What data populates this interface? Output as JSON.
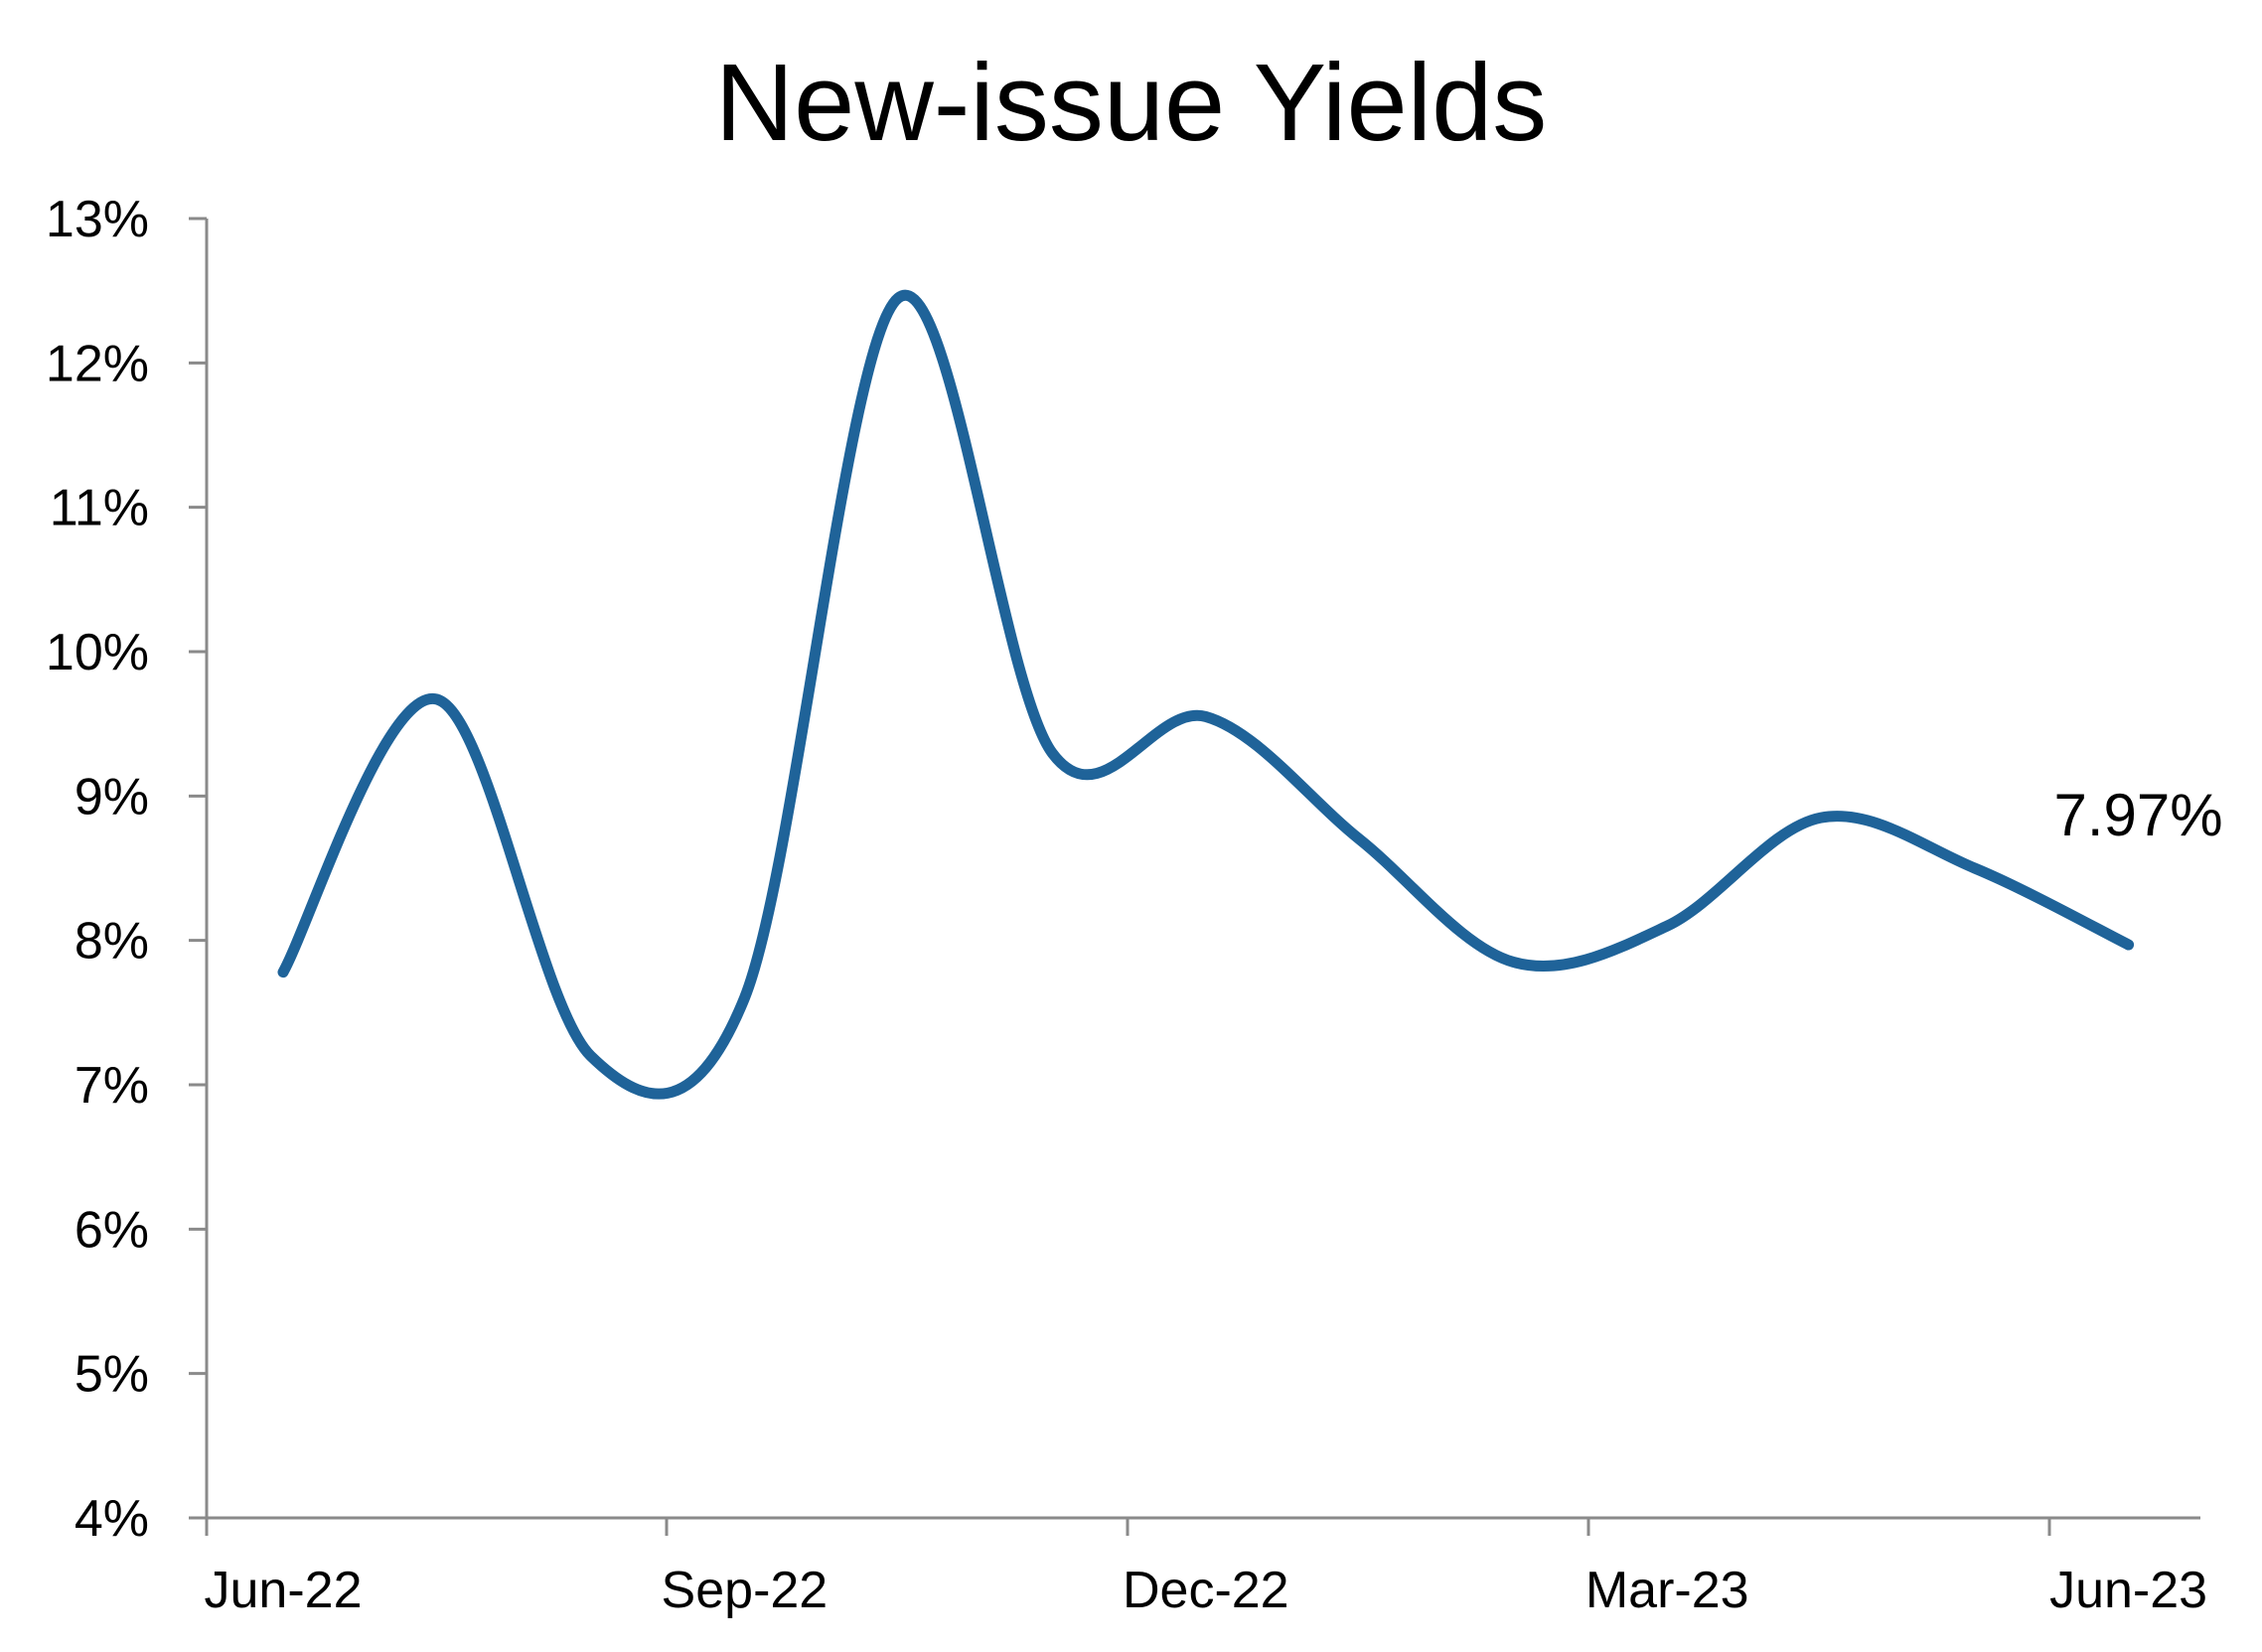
{
  "chart_data": {
    "type": "line",
    "title": "New-issue Yields",
    "xlabel": "",
    "ylabel": "",
    "x_tick_labels": [
      "Jun-22",
      "Sep-22",
      "Dec-22",
      "Mar-23",
      "Jun-23"
    ],
    "y_tick_labels": [
      "4%",
      "5%",
      "6%",
      "7%",
      "8%",
      "9%",
      "10%",
      "11%",
      "12%",
      "13%"
    ],
    "ylim": [
      4,
      13
    ],
    "y_unit": "%",
    "grid": false,
    "legend": "none",
    "series": [
      {
        "color": "#1f6399",
        "x": [
          "Jun-22",
          "Jul-22",
          "Aug-22",
          "Sep-22",
          "Oct-22",
          "Nov-22",
          "Dec-22",
          "Jan-23",
          "Feb-23",
          "Mar-23",
          "Apr-23",
          "May-23",
          "Jun-23"
        ],
        "values": [
          7.78,
          9.67,
          7.2,
          7.6,
          12.45,
          9.3,
          9.55,
          8.7,
          7.85,
          8.1,
          8.85,
          8.5,
          7.97
        ]
      }
    ],
    "annotations": [
      {
        "text": "7.97%",
        "x": "Jun-23",
        "y": 7.97
      }
    ]
  }
}
